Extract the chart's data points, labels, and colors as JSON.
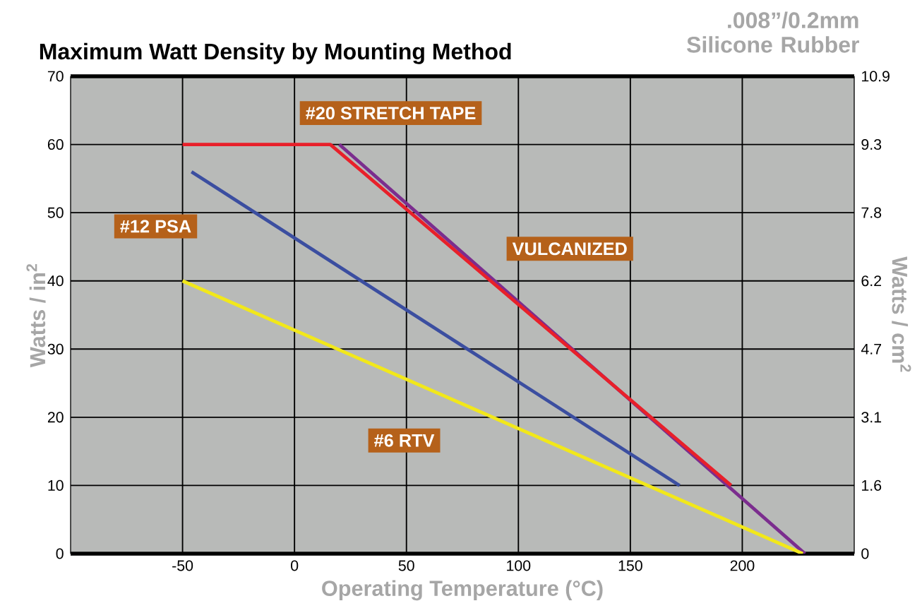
{
  "chart_data": {
    "type": "line",
    "title": "Maximum Watt Density by Mounting Method",
    "subtitle": ".008”/0.2mm Silicone Rubber",
    "xlabel": "Operating Temperature (°C)",
    "ylabel": "Watts / in$^{2}$",
    "y2label": "Watts / cm$^{2}$",
    "xlim": [
      -100,
      250
    ],
    "xticks": [
      -50,
      0,
      50,
      100,
      150,
      200
    ],
    "ylim": [
      0,
      70
    ],
    "yticks": [
      0,
      10,
      20,
      30,
      40,
      50,
      60,
      70
    ],
    "y2lim": [
      0,
      10.85
    ],
    "y2ticks": [
      {
        "value": 0,
        "label": "0"
      },
      {
        "value": 1.55,
        "label": "1.6"
      },
      {
        "value": 3.1,
        "label": "3.1"
      },
      {
        "value": 4.65,
        "label": "4.7"
      },
      {
        "value": 6.2,
        "label": "6.2"
      },
      {
        "value": 7.75,
        "label": "7.8"
      },
      {
        "value": 9.3,
        "label": "9.3"
      },
      {
        "value": 10.85,
        "label": "10.9"
      }
    ],
    "grid": true,
    "marker": "none",
    "line_style": "solid",
    "series": [
      {
        "name": "VULCANIZED",
        "color": "#7b2d8e",
        "x": [
          20,
          228
        ],
        "values": [
          60,
          0
        ]
      },
      {
        "name": "#20 STRETCH TAPE",
        "color": "#e8202a",
        "x": [
          -50,
          16,
          195
        ],
        "values": [
          60,
          60,
          10
        ]
      },
      {
        "name": "#12 PSA",
        "color": "#3b4ea0",
        "x": [
          -46,
          172
        ],
        "values": [
          56,
          10
        ]
      },
      {
        "name": "#6 RTV",
        "color": "#f2e81a",
        "x": [
          -50,
          227
        ],
        "values": [
          40,
          0
        ]
      }
    ]
  }
}
